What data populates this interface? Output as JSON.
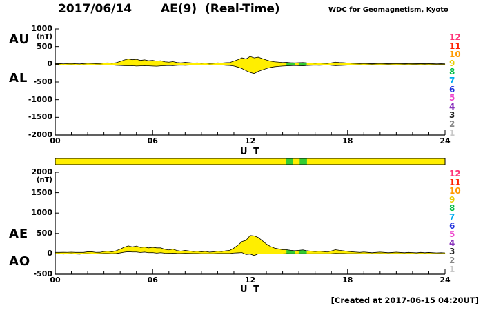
{
  "header": {
    "date": "2017/06/14",
    "title": "AE(9)  (Real-Time)",
    "credit": "WDC for Geomagnetism, Kyoto"
  },
  "footer": {
    "created": "[Created at 2017-06-15 04:20UT]"
  },
  "legend": {
    "items": [
      {
        "label": "12",
        "color": "#ff3377"
      },
      {
        "label": "11",
        "color": "#ff2200"
      },
      {
        "label": "10",
        "color": "#ff9900"
      },
      {
        "label": "9",
        "color": "#e8cc00"
      },
      {
        "label": "8",
        "color": "#00bb44"
      },
      {
        "label": "7",
        "color": "#00aaee"
      },
      {
        "label": "6",
        "color": "#2233dd"
      },
      {
        "label": "5",
        "color": "#ee44cc"
      },
      {
        "label": "4",
        "color": "#8833bb"
      },
      {
        "label": "3",
        "color": "#222222"
      },
      {
        "label": "2",
        "color": "#888888"
      },
      {
        "label": "1",
        "color": "#c8c8c8"
      }
    ]
  },
  "panel_top": {
    "left_labels": [
      "AU",
      "AL"
    ],
    "y_unit": "(nT)",
    "y_tick_labels": [
      "1000",
      "500",
      "0",
      "-500",
      "-1000",
      "-1500",
      "-2000"
    ],
    "y_tick_values": [
      1000,
      500,
      0,
      -500,
      -1000,
      -1500,
      -2000
    ],
    "x_tick_labels": [
      "00",
      "06",
      "12",
      "18",
      "24"
    ],
    "x_tick_values": [
      0,
      6,
      12,
      18,
      24
    ],
    "x_label": "U T",
    "ylim": [
      -2000,
      1000
    ]
  },
  "panel_bottom": {
    "left_labels": [
      "AE",
      "AO"
    ],
    "y_unit": "(nT)",
    "y_tick_labels": [
      "2000",
      "1500",
      "1000",
      "500",
      "0",
      "-500"
    ],
    "y_tick_values": [
      2000,
      1500,
      1000,
      500,
      0,
      -500
    ],
    "x_tick_labels": [
      "00",
      "06",
      "12",
      "18",
      "24"
    ],
    "x_tick_values": [
      0,
      6,
      12,
      18,
      24
    ],
    "x_label": "U T",
    "ylim": [
      -500,
      2000
    ]
  },
  "chart_data": [
    {
      "type": "area",
      "title": "AU and AL auroral electrojet indices, 2017/06/14 (Real-Time, 9 stations)",
      "xlabel": "U T",
      "ylabel": "nT",
      "xlim": [
        0,
        24
      ],
      "ylim": [
        -2000,
        1000
      ],
      "x_start": 0,
      "x_step_hours": 0.25,
      "fill_color": "#ffee00",
      "alt_fill_color": "#33cc33",
      "alt_fill_intervals_ut": [
        [
          14.2,
          14.65
        ],
        [
          15.05,
          15.5
        ]
      ],
      "series": [
        {
          "name": "AU",
          "values": [
            15,
            20,
            12,
            18,
            25,
            15,
            10,
            20,
            30,
            25,
            18,
            22,
            35,
            40,
            30,
            45,
            80,
            120,
            150,
            130,
            140,
            110,
            125,
            100,
            110,
            90,
            100,
            70,
            60,
            75,
            50,
            40,
            55,
            45,
            35,
            40,
            30,
            35,
            25,
            30,
            40,
            35,
            45,
            50,
            90,
            130,
            180,
            150,
            220,
            180,
            200,
            160,
            120,
            90,
            70,
            60,
            50,
            55,
            45,
            40,
            45,
            50,
            40,
            35,
            30,
            35,
            30,
            25,
            40,
            60,
            50,
            45,
            35,
            30,
            25,
            20,
            25,
            20,
            15,
            20,
            25,
            20,
            15,
            18,
            22,
            18,
            15,
            20,
            18,
            15,
            20,
            15,
            18,
            15,
            12,
            15,
            12
          ]
        },
        {
          "name": "AL",
          "values": [
            -20,
            -15,
            -25,
            -18,
            -15,
            -20,
            -25,
            -15,
            -20,
            -25,
            -18,
            -15,
            -20,
            -25,
            -20,
            -30,
            -35,
            -40,
            -45,
            -40,
            -50,
            -45,
            -40,
            -45,
            -50,
            -55,
            -45,
            -40,
            -35,
            -40,
            -30,
            -25,
            -30,
            -25,
            -20,
            -25,
            -20,
            -25,
            -15,
            -20,
            -25,
            -20,
            -30,
            -35,
            -50,
            -80,
            -120,
            -180,
            -230,
            -260,
            -200,
            -160,
            -120,
            -90,
            -70,
            -60,
            -50,
            -45,
            -40,
            -35,
            -40,
            -45,
            -35,
            -30,
            -25,
            -30,
            -25,
            -20,
            -30,
            -40,
            -35,
            -30,
            -25,
            -20,
            -18,
            -15,
            -20,
            -15,
            -12,
            -15,
            -18,
            -15,
            -12,
            -15,
            -18,
            -15,
            -12,
            -15,
            -12,
            -10,
            -15,
            -12,
            -15,
            -12,
            -10,
            -12,
            -10
          ]
        }
      ]
    },
    {
      "type": "area",
      "title": "AE and AO auroral electrojet indices, 2017/06/14 (Real-Time, 9 stations)",
      "xlabel": "U T",
      "ylabel": "nT",
      "xlim": [
        0,
        24
      ],
      "ylim": [
        -500,
        2000
      ],
      "fill_color": "#ffee00",
      "alt_fill_color": "#33cc33",
      "alt_fill_intervals_ut": [
        [
          14.2,
          14.65
        ],
        [
          15.05,
          15.5
        ]
      ],
      "series": [
        {
          "name": "AE",
          "derived": "AU - AL"
        },
        {
          "name": "AO",
          "derived": "(AU + AL) / 2"
        }
      ]
    },
    {
      "type": "heatmap",
      "title": "station-count color strip",
      "xlim": [
        0,
        24
      ],
      "base_color": "#ffee00",
      "base_count": 9,
      "alt_color": "#33cc33",
      "alt_intervals_ut": [
        [
          14.2,
          14.65
        ],
        [
          15.05,
          15.5
        ]
      ]
    }
  ]
}
